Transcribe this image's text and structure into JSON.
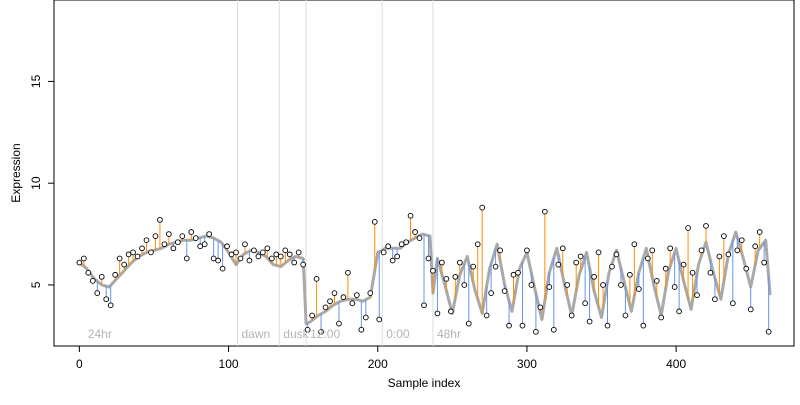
{
  "chart_data": {
    "type": "line",
    "title": "",
    "xlabel": "Sample index",
    "ylabel": "Expression",
    "xlim": [
      -17,
      479
    ],
    "ylim": [
      2,
      19
    ],
    "x_ticks": [
      0,
      100,
      200,
      300,
      400
    ],
    "y_ticks": [
      5,
      10,
      15
    ],
    "grid": "vertical-lines-only",
    "annotations": [
      {
        "label": "24hr",
        "x": 3,
        "line": false
      },
      {
        "label": "dawn",
        "x": 106,
        "line": true
      },
      {
        "label": "dusk",
        "x": 134,
        "line": true
      },
      {
        "label": "12:00",
        "x": 152,
        "line": true
      },
      {
        "label": "0:00",
        "x": 203,
        "line": true
      },
      {
        "label": "48hr",
        "x": 237,
        "line": true
      }
    ],
    "series": [
      {
        "role": "fitted",
        "color": "#a9a9a9",
        "x": [
          0,
          5,
          10,
          15,
          20,
          25,
          30,
          35,
          40,
          45,
          50,
          55,
          60,
          65,
          70,
          75,
          80,
          85,
          90,
          95,
          100,
          105,
          110,
          115,
          120,
          125,
          130,
          135,
          140,
          145,
          150,
          152,
          155,
          160,
          165,
          170,
          175,
          180,
          185,
          190,
          195,
          200,
          203,
          205,
          210,
          215,
          220,
          225,
          230,
          235,
          237,
          240,
          245,
          250,
          255,
          260,
          265,
          270,
          275,
          280,
          285,
          290,
          295,
          300,
          305,
          310,
          315,
          320,
          325,
          330,
          335,
          340,
          345,
          350,
          355,
          360,
          365,
          370,
          375,
          380,
          385,
          390,
          395,
          400,
          405,
          410,
          415,
          420,
          425,
          430,
          435,
          440,
          445,
          450,
          455,
          460,
          463
        ],
        "values": [
          6.1,
          5.8,
          5.3,
          5.0,
          4.9,
          5.3,
          5.7,
          6.1,
          6.4,
          6.6,
          6.7,
          6.8,
          7.0,
          7.1,
          7.2,
          7.2,
          7.3,
          7.4,
          7.3,
          7.1,
          6.6,
          6.0,
          6.5,
          6.7,
          6.6,
          6.4,
          6.0,
          5.9,
          6.2,
          6.4,
          6.3,
          3.1,
          3.2,
          3.5,
          3.7,
          4.0,
          4.2,
          4.3,
          4.3,
          4.2,
          4.4,
          6.6,
          6.7,
          6.8,
          6.8,
          6.8,
          7.1,
          7.3,
          7.5,
          7.4,
          4.6,
          6.3,
          5.0,
          3.6,
          5.5,
          6.4,
          4.8,
          3.6,
          5.8,
          7.0,
          5.0,
          3.7,
          5.8,
          6.6,
          4.9,
          3.3,
          5.6,
          6.8,
          5.1,
          3.5,
          5.5,
          6.6,
          4.7,
          3.4,
          5.6,
          6.7,
          5.2,
          3.7,
          5.6,
          6.8,
          5.0,
          3.5,
          5.7,
          6.8,
          5.2,
          3.8,
          6.0,
          7.1,
          5.6,
          4.3,
          6.5,
          7.6,
          6.3,
          4.9,
          6.7,
          7.2,
          4.5
        ]
      },
      {
        "role": "observed",
        "color_up": "#ff8c00",
        "color_down": "#6495ed",
        "point_fill": "#ffffff",
        "point_stroke": "#000000",
        "x": [
          0,
          3,
          6,
          9,
          12,
          15,
          18,
          21,
          24,
          27,
          30,
          33,
          36,
          39,
          42,
          45,
          48,
          51,
          54,
          57,
          60,
          63,
          66,
          69,
          72,
          75,
          78,
          81,
          84,
          87,
          90,
          93,
          96,
          99,
          102,
          105,
          108,
          111,
          114,
          117,
          120,
          123,
          126,
          129,
          132,
          135,
          138,
          141,
          144,
          147,
          150,
          153,
          156,
          159,
          162,
          165,
          168,
          171,
          174,
          177,
          180,
          183,
          186,
          189,
          192,
          195,
          198,
          201,
          204,
          207,
          210,
          213,
          216,
          219,
          222,
          225,
          228,
          231,
          234,
          237,
          240,
          243,
          246,
          249,
          252,
          255,
          258,
          261,
          264,
          267,
          270,
          273,
          276,
          279,
          282,
          285,
          288,
          291,
          294,
          297,
          300,
          303,
          306,
          309,
          312,
          315,
          318,
          321,
          324,
          327,
          330,
          333,
          336,
          339,
          342,
          345,
          348,
          351,
          354,
          357,
          360,
          363,
          366,
          369,
          372,
          375,
          378,
          381,
          384,
          387,
          390,
          393,
          396,
          399,
          402,
          405,
          408,
          411,
          414,
          417,
          420,
          423,
          426,
          429,
          432,
          435,
          438,
          441,
          444,
          447,
          450,
          453,
          456,
          459,
          462
        ],
        "values": [
          6.1,
          6.3,
          5.6,
          5.2,
          4.6,
          5.4,
          4.3,
          4.0,
          5.5,
          6.3,
          6.0,
          6.5,
          6.6,
          6.4,
          6.8,
          7.2,
          6.6,
          7.4,
          8.2,
          7.0,
          7.5,
          6.8,
          7.1,
          7.4,
          6.3,
          7.6,
          7.3,
          6.9,
          7.0,
          7.5,
          6.3,
          6.2,
          5.8,
          6.9,
          6.5,
          6.6,
          6.3,
          7.0,
          6.2,
          6.7,
          6.4,
          6.6,
          6.8,
          6.3,
          6.5,
          6.4,
          6.7,
          6.5,
          6.1,
          6.6,
          6.0,
          2.8,
          3.5,
          5.3,
          2.7,
          3.9,
          4.2,
          4.6,
          3.1,
          4.4,
          5.6,
          4.1,
          4.5,
          2.8,
          3.4,
          4.6,
          8.1,
          3.3,
          6.6,
          6.9,
          6.2,
          6.4,
          7.0,
          7.1,
          8.4,
          7.6,
          7.3,
          4.0,
          6.3,
          5.7,
          3.6,
          6.1,
          5.3,
          3.7,
          5.4,
          6.1,
          5.0,
          3.1,
          5.9,
          7.0,
          8.8,
          3.5,
          4.6,
          5.9,
          6.7,
          4.7,
          3.0,
          5.5,
          5.6,
          3.0,
          6.7,
          5.0,
          2.7,
          3.9,
          8.6,
          4.9,
          2.8,
          6.0,
          6.8,
          5.0,
          3.5,
          6.1,
          6.4,
          4.1,
          3.2,
          5.4,
          6.6,
          5.0,
          3.0,
          5.9,
          6.5,
          5.0,
          3.5,
          5.5,
          7.0,
          4.8,
          3.0,
          6.3,
          6.7,
          5.2,
          3.4,
          5.8,
          6.8,
          4.9,
          3.7,
          6.0,
          7.8,
          5.6,
          4.5,
          6.7,
          7.9,
          5.6,
          4.3,
          6.4,
          7.4,
          6.5,
          4.1,
          6.7,
          7.2,
          5.8,
          3.8,
          6.9,
          7.6,
          6.1,
          2.7
        ]
      }
    ]
  }
}
